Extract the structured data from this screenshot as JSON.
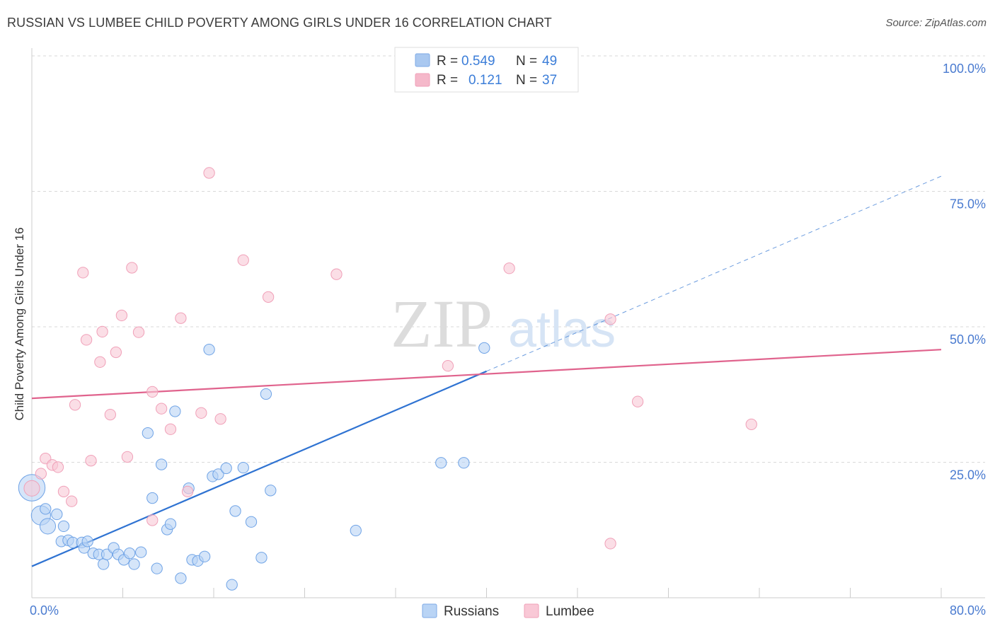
{
  "title": "RUSSIAN VS LUMBEE CHILD POVERTY AMONG GIRLS UNDER 16 CORRELATION CHART",
  "source": "Source: ZipAtlas.com",
  "watermark": {
    "zip": "ZIP",
    "atlas": "atlas"
  },
  "legend_top": [
    {
      "r_label": "R =",
      "r_value": "0.549",
      "n_label": "N =",
      "n_value": "49",
      "color": "#a9c8f0"
    },
    {
      "r_label": "R =",
      "r_value": "0.121",
      "n_label": "N =",
      "n_value": "37",
      "color": "#f5b8ca"
    }
  ],
  "legend_bottom": [
    {
      "label": "Russians",
      "color": "#b9d4f5"
    },
    {
      "label": "Lumbee",
      "color": "#f9c8d6"
    }
  ],
  "chart_data": {
    "type": "scatter",
    "title": "RUSSIAN VS LUMBEE CHILD POVERTY AMONG GIRLS UNDER 16 CORRELATION CHART",
    "xlabel": "",
    "ylabel": "Child Poverty Among Girls Under 16",
    "xlim": [
      0,
      80
    ],
    "ylim": [
      0,
      100
    ],
    "x_tick_labels": [
      "0.0%",
      "80.0%"
    ],
    "y_tick_labels": [
      "25.0%",
      "50.0%",
      "75.0%",
      "100.0%"
    ],
    "y_ticks": [
      25,
      50,
      75,
      100
    ],
    "grid": true,
    "series": [
      {
        "name": "Russians",
        "color": "#6fa3e6",
        "fill": "#b9d4f5",
        "trend": {
          "x0": 0,
          "y0": 5.8,
          "x1": 40,
          "y1": 41.8,
          "dashed_to_x": 80,
          "dashed_to_y": 77.8,
          "color": "#2f73d2"
        },
        "points": [
          [
            0.0,
            20.3,
            2.2
          ],
          [
            0.8,
            15.2,
            1.6
          ],
          [
            1.4,
            13.2,
            1.3
          ],
          [
            2.2,
            15.4,
            0.9
          ],
          [
            2.6,
            10.4,
            0.9
          ],
          [
            3.2,
            10.6,
            0.9
          ],
          [
            3.6,
            10.2,
            0.9
          ],
          [
            4.4,
            10.2,
            0.9
          ],
          [
            4.6,
            9.2,
            0.9
          ],
          [
            4.9,
            10.4,
            0.9
          ],
          [
            5.4,
            8.2,
            0.9
          ],
          [
            5.9,
            8.0,
            0.9
          ],
          [
            6.3,
            6.2,
            0.9
          ],
          [
            6.6,
            8.0,
            0.9
          ],
          [
            7.2,
            9.2,
            0.9
          ],
          [
            7.6,
            8.0,
            0.9
          ],
          [
            8.1,
            7.0,
            0.9
          ],
          [
            8.6,
            8.2,
            0.9
          ],
          [
            9.0,
            6.2,
            0.9
          ],
          [
            9.6,
            8.4,
            0.9
          ],
          [
            10.2,
            30.4,
            0.9
          ],
          [
            10.6,
            18.4,
            0.9
          ],
          [
            11.0,
            5.4,
            0.9
          ],
          [
            11.4,
            24.6,
            0.9
          ],
          [
            11.9,
            12.6,
            0.9
          ],
          [
            12.2,
            13.6,
            0.9
          ],
          [
            12.6,
            34.4,
            0.9
          ],
          [
            13.1,
            3.6,
            0.9
          ],
          [
            13.8,
            20.2,
            0.9
          ],
          [
            14.1,
            7.0,
            0.9
          ],
          [
            14.6,
            6.8,
            0.9
          ],
          [
            15.2,
            7.6,
            0.9
          ],
          [
            15.6,
            45.8,
            0.9
          ],
          [
            15.9,
            22.4,
            0.9
          ],
          [
            16.4,
            22.8,
            0.9
          ],
          [
            17.1,
            23.9,
            0.9
          ],
          [
            17.6,
            2.4,
            0.9
          ],
          [
            17.9,
            16.0,
            0.9
          ],
          [
            18.6,
            24.0,
            0.9
          ],
          [
            19.3,
            14.0,
            0.9
          ],
          [
            20.2,
            7.4,
            0.9
          ],
          [
            20.6,
            37.6,
            0.9
          ],
          [
            21.0,
            19.8,
            0.9
          ],
          [
            28.5,
            12.4,
            0.9
          ],
          [
            36.0,
            24.9,
            0.9
          ],
          [
            38.0,
            24.9,
            0.9
          ],
          [
            39.8,
            46.1,
            0.9
          ],
          [
            2.8,
            13.2,
            0.9
          ],
          [
            1.2,
            16.4,
            0.9
          ]
        ]
      },
      {
        "name": "Lumbee",
        "color": "#f0a0b8",
        "fill": "#f9c8d6",
        "trend": {
          "x0": 0,
          "y0": 36.8,
          "x1": 80,
          "y1": 45.8,
          "color": "#e0638d"
        },
        "points": [
          [
            0.0,
            20.2,
            1.3
          ],
          [
            0.8,
            22.9,
            0.9
          ],
          [
            1.2,
            25.7,
            0.9
          ],
          [
            1.8,
            24.5,
            0.9
          ],
          [
            2.3,
            24.1,
            0.9
          ],
          [
            2.8,
            19.6,
            0.9
          ],
          [
            3.5,
            17.8,
            0.9
          ],
          [
            3.8,
            35.6,
            0.9
          ],
          [
            4.5,
            60.0,
            0.9
          ],
          [
            4.8,
            47.6,
            0.9
          ],
          [
            5.2,
            25.3,
            0.9
          ],
          [
            6.0,
            43.5,
            0.9
          ],
          [
            6.2,
            49.1,
            0.9
          ],
          [
            6.9,
            33.8,
            0.9
          ],
          [
            7.4,
            45.3,
            0.9
          ],
          [
            7.9,
            52.1,
            0.9
          ],
          [
            8.4,
            26.0,
            0.9
          ],
          [
            8.8,
            60.9,
            0.9
          ],
          [
            9.4,
            49.0,
            0.9
          ],
          [
            10.6,
            14.3,
            0.9
          ],
          [
            10.6,
            38.0,
            0.9
          ],
          [
            11.4,
            34.9,
            0.9
          ],
          [
            12.2,
            31.1,
            0.9
          ],
          [
            13.1,
            51.6,
            0.9
          ],
          [
            13.7,
            19.6,
            0.9
          ],
          [
            14.9,
            34.1,
            0.9
          ],
          [
            15.6,
            78.4,
            0.9
          ],
          [
            16.6,
            33.0,
            0.9
          ],
          [
            18.6,
            62.3,
            0.9
          ],
          [
            20.8,
            55.5,
            0.9
          ],
          [
            26.8,
            59.7,
            0.9
          ],
          [
            36.6,
            42.8,
            0.9
          ],
          [
            42.0,
            60.8,
            0.9
          ],
          [
            50.9,
            51.4,
            0.9
          ],
          [
            53.3,
            36.2,
            0.9
          ],
          [
            63.3,
            32.0,
            0.9
          ],
          [
            50.9,
            10.0,
            0.9
          ]
        ]
      }
    ]
  }
}
